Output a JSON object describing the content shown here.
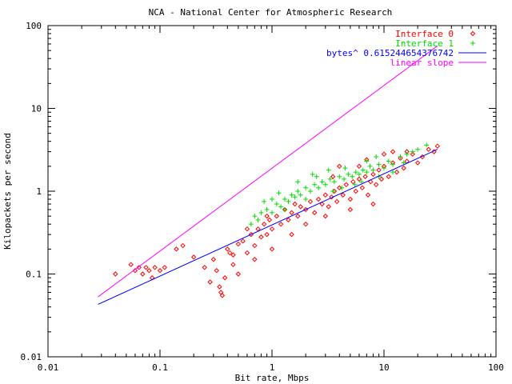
{
  "chart_data": {
    "type": "scatter",
    "title": "NCA - National Center for Atmospheric Research",
    "xlabel": "Bit rate, Mbps",
    "ylabel": "Kilopackets per second",
    "xscale": "log",
    "yscale": "log",
    "xlim": [
      0.01,
      100
    ],
    "ylim": [
      0.01,
      100
    ],
    "x_ticks": [
      0.01,
      0.1,
      1,
      10,
      100
    ],
    "x_tick_labels": [
      "0.01",
      "0.1",
      "1",
      "10",
      "100"
    ],
    "y_ticks": [
      0.01,
      0.1,
      1,
      10,
      100
    ],
    "y_tick_labels": [
      "0.01",
      "0.1",
      "1",
      "10",
      "100"
    ],
    "grid": false,
    "legend_position": "top-right",
    "series": [
      {
        "name": "Interface 0",
        "kind": "points",
        "marker": "diamond",
        "color": "#ff0000",
        "points": [
          [
            0.04,
            0.1
          ],
          [
            0.055,
            0.13
          ],
          [
            0.06,
            0.11
          ],
          [
            0.065,
            0.12
          ],
          [
            0.07,
            0.1
          ],
          [
            0.075,
            0.12
          ],
          [
            0.08,
            0.11
          ],
          [
            0.085,
            0.09
          ],
          [
            0.09,
            0.12
          ],
          [
            0.1,
            0.11
          ],
          [
            0.11,
            0.12
          ],
          [
            0.14,
            0.2
          ],
          [
            0.16,
            0.22
          ],
          [
            0.2,
            0.16
          ],
          [
            0.25,
            0.12
          ],
          [
            0.28,
            0.08
          ],
          [
            0.3,
            0.15
          ],
          [
            0.32,
            0.11
          ],
          [
            0.34,
            0.07
          ],
          [
            0.35,
            0.06
          ],
          [
            0.36,
            0.055
          ],
          [
            0.38,
            0.09
          ],
          [
            0.4,
            0.2
          ],
          [
            0.42,
            0.18
          ],
          [
            0.45,
            0.13
          ],
          [
            0.5,
            0.1
          ],
          [
            0.55,
            0.25
          ],
          [
            0.6,
            0.18
          ],
          [
            0.65,
            0.3
          ],
          [
            0.7,
            0.22
          ],
          [
            0.75,
            0.35
          ],
          [
            0.8,
            0.28
          ],
          [
            0.85,
            0.4
          ],
          [
            0.9,
            0.3
          ],
          [
            0.95,
            0.45
          ],
          [
            1.0,
            0.35
          ],
          [
            1.1,
            0.5
          ],
          [
            1.2,
            0.4
          ],
          [
            1.3,
            0.6
          ],
          [
            1.4,
            0.45
          ],
          [
            1.5,
            0.55
          ],
          [
            1.6,
            0.7
          ],
          [
            1.7,
            0.5
          ],
          [
            1.8,
            0.65
          ],
          [
            2.0,
            0.6
          ],
          [
            2.2,
            0.75
          ],
          [
            2.4,
            0.55
          ],
          [
            2.6,
            0.8
          ],
          [
            2.8,
            0.7
          ],
          [
            3.0,
            0.9
          ],
          [
            3.2,
            0.65
          ],
          [
            3.4,
            0.85
          ],
          [
            3.6,
            1.0
          ],
          [
            3.8,
            0.75
          ],
          [
            4.0,
            1.1
          ],
          [
            4.3,
            0.9
          ],
          [
            4.6,
            1.2
          ],
          [
            5.0,
            0.8
          ],
          [
            5.3,
            1.3
          ],
          [
            5.6,
            1.0
          ],
          [
            6.0,
            1.4
          ],
          [
            6.4,
            1.1
          ],
          [
            6.8,
            1.5
          ],
          [
            7.2,
            0.9
          ],
          [
            7.6,
            1.3
          ],
          [
            8.0,
            1.6
          ],
          [
            8.5,
            1.2
          ],
          [
            9.0,
            1.8
          ],
          [
            9.5,
            1.4
          ],
          [
            10.0,
            2.0
          ],
          [
            11.0,
            1.5
          ],
          [
            12.0,
            2.2
          ],
          [
            13.0,
            1.7
          ],
          [
            14.0,
            2.5
          ],
          [
            15.0,
            1.9
          ],
          [
            16.0,
            2.3
          ],
          [
            18.0,
            2.8
          ],
          [
            20.0,
            2.2
          ],
          [
            22.0,
            2.6
          ],
          [
            25.0,
            3.2
          ],
          [
            28.0,
            3.0
          ],
          [
            30.0,
            3.5
          ],
          [
            3.5,
            1.5
          ],
          [
            6.0,
            2.0
          ],
          [
            10.0,
            2.8
          ],
          [
            12.0,
            3.0
          ],
          [
            2.0,
            0.4
          ],
          [
            3.0,
            0.5
          ],
          [
            5.0,
            0.6
          ],
          [
            8.0,
            0.7
          ],
          [
            1.0,
            0.2
          ],
          [
            0.7,
            0.15
          ],
          [
            1.5,
            0.3
          ],
          [
            0.9,
            0.5
          ],
          [
            0.6,
            0.35
          ],
          [
            4.0,
            2.0
          ],
          [
            7.0,
            2.4
          ],
          [
            16.0,
            3.0
          ],
          [
            0.5,
            0.23
          ],
          [
            0.45,
            0.17
          ]
        ]
      },
      {
        "name": "Interface 1",
        "kind": "points",
        "marker": "plus",
        "color": "#00dd00",
        "points": [
          [
            0.65,
            0.4
          ],
          [
            0.7,
            0.5
          ],
          [
            0.75,
            0.45
          ],
          [
            0.8,
            0.55
          ],
          [
            0.9,
            0.6
          ],
          [
            1.0,
            0.55
          ],
          [
            1.1,
            0.7
          ],
          [
            1.2,
            0.65
          ],
          [
            1.3,
            0.8
          ],
          [
            1.4,
            0.75
          ],
          [
            1.5,
            0.9
          ],
          [
            1.6,
            0.85
          ],
          [
            1.7,
            1.0
          ],
          [
            1.8,
            0.9
          ],
          [
            2.0,
            1.1
          ],
          [
            2.2,
            1.0
          ],
          [
            2.4,
            1.2
          ],
          [
            2.6,
            1.1
          ],
          [
            2.8,
            1.3
          ],
          [
            3.0,
            1.2
          ],
          [
            3.3,
            1.4
          ],
          [
            3.6,
            1.3
          ],
          [
            4.0,
            1.5
          ],
          [
            4.4,
            1.4
          ],
          [
            4.8,
            1.6
          ],
          [
            5.2,
            1.5
          ],
          [
            5.6,
            1.7
          ],
          [
            6.0,
            1.6
          ],
          [
            6.5,
            1.8
          ],
          [
            7.0,
            1.7
          ],
          [
            7.5,
            2.0
          ],
          [
            8.0,
            1.8
          ],
          [
            9.0,
            2.1
          ],
          [
            10.0,
            1.9
          ],
          [
            11.0,
            2.3
          ],
          [
            12.0,
            2.1
          ],
          [
            14.0,
            2.6
          ],
          [
            16.0,
            2.8
          ],
          [
            18.0,
            3.0
          ],
          [
            20.0,
            3.2
          ],
          [
            24.0,
            3.6
          ],
          [
            1.0,
            0.8
          ],
          [
            1.3,
            0.6
          ],
          [
            2.0,
            0.8
          ],
          [
            2.5,
            1.5
          ],
          [
            3.5,
            1.0
          ],
          [
            4.5,
            1.9
          ],
          [
            5.5,
            1.2
          ],
          [
            7.0,
            2.3
          ],
          [
            9.0,
            1.5
          ],
          [
            1.7,
            1.3
          ],
          [
            2.3,
            1.6
          ],
          [
            3.2,
            1.8
          ],
          [
            0.85,
            0.75
          ],
          [
            1.15,
            0.95
          ],
          [
            6.3,
            1.3
          ],
          [
            8.5,
            2.6
          ],
          [
            12.0,
            1.7
          ],
          [
            15.0,
            2.2
          ],
          [
            4.2,
            1.1
          ]
        ]
      },
      {
        "name": "bytes^ 0.615244654376742",
        "kind": "line",
        "color": "#0000ff",
        "points": [
          [
            0.028,
            0.043
          ],
          [
            30,
            3.2
          ]
        ]
      },
      {
        "name": "linear slope",
        "kind": "line",
        "color": "#ff00ff",
        "points": [
          [
            0.028,
            0.053
          ],
          [
            30,
            56.8
          ]
        ]
      }
    ]
  }
}
